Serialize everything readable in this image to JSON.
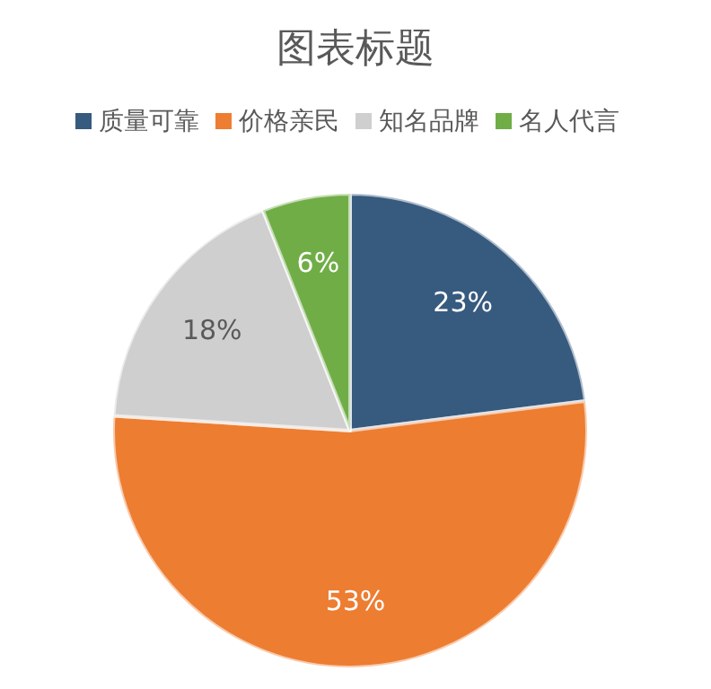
{
  "chart_data": {
    "type": "pie",
    "title": "图表标题",
    "categories": [
      "质量可靠",
      "价格亲民",
      "知名品牌",
      "名人代言"
    ],
    "values": [
      23,
      53,
      18,
      6
    ],
    "colors": [
      "#375a7f",
      "#ed7d31",
      "#d0cfcf",
      "#70ad47"
    ],
    "value_labels": [
      "23%",
      "53%",
      "18%",
      "6%"
    ],
    "legend": "top"
  }
}
